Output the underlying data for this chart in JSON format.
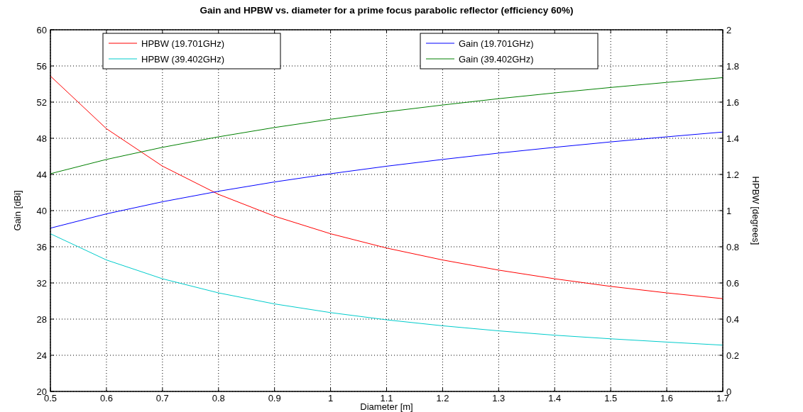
{
  "chart_data": {
    "type": "line",
    "title": "Gain and HPBW vs. diameter for a prime focus parabolic reflector (efficiency 60%)",
    "xlabel": "Diameter [m]",
    "ylabel": "Gain [dBi]",
    "y2label": "HPBW [degrees]",
    "x": [
      0.5,
      0.6,
      0.7,
      0.8,
      0.9,
      1.0,
      1.1,
      1.2,
      1.3,
      1.4,
      1.5,
      1.6,
      1.7
    ],
    "series": [
      {
        "name": "HPBW (19.701GHz)",
        "color": "#ff0000",
        "axis": "y2",
        "values": [
          1.744,
          1.453,
          1.246,
          1.09,
          0.969,
          0.872,
          0.793,
          0.727,
          0.671,
          0.623,
          0.581,
          0.545,
          0.513
        ]
      },
      {
        "name": "HPBW (39.402GHz)",
        "color": "#00cccc",
        "axis": "y2",
        "values": [
          0.872,
          0.727,
          0.623,
          0.545,
          0.484,
          0.436,
          0.396,
          0.363,
          0.335,
          0.311,
          0.291,
          0.273,
          0.256
        ]
      },
      {
        "name": "Gain (19.701GHz)",
        "color": "#0000ff",
        "values": [
          38.06,
          39.64,
          40.98,
          42.14,
          43.17,
          44.08,
          44.91,
          45.66,
          46.36,
          47.0,
          47.6,
          48.16,
          48.69
        ]
      },
      {
        "name": "Gain (39.402GHz)",
        "color": "#008000",
        "values": [
          44.08,
          45.66,
          47.0,
          48.16,
          49.19,
          50.1,
          50.93,
          51.68,
          52.38,
          53.02,
          53.62,
          54.18,
          54.71
        ]
      }
    ],
    "xlim": [
      0.5,
      1.7
    ],
    "xticks": [
      0.5,
      0.6,
      0.7,
      0.8,
      0.9,
      1,
      1.1,
      1.2,
      1.3,
      1.4,
      1.5,
      1.6,
      1.7
    ],
    "ylim": [
      20,
      60
    ],
    "yticks": [
      20,
      24,
      28,
      32,
      36,
      40,
      44,
      48,
      52,
      56,
      60
    ],
    "y2lim": [
      0,
      2
    ],
    "y2ticks": [
      0,
      0.2,
      0.4,
      0.6,
      0.8,
      1,
      1.2,
      1.4,
      1.6,
      1.8,
      2
    ],
    "grid": true,
    "legend": "top",
    "marker": "none",
    "line_style": "solid"
  }
}
